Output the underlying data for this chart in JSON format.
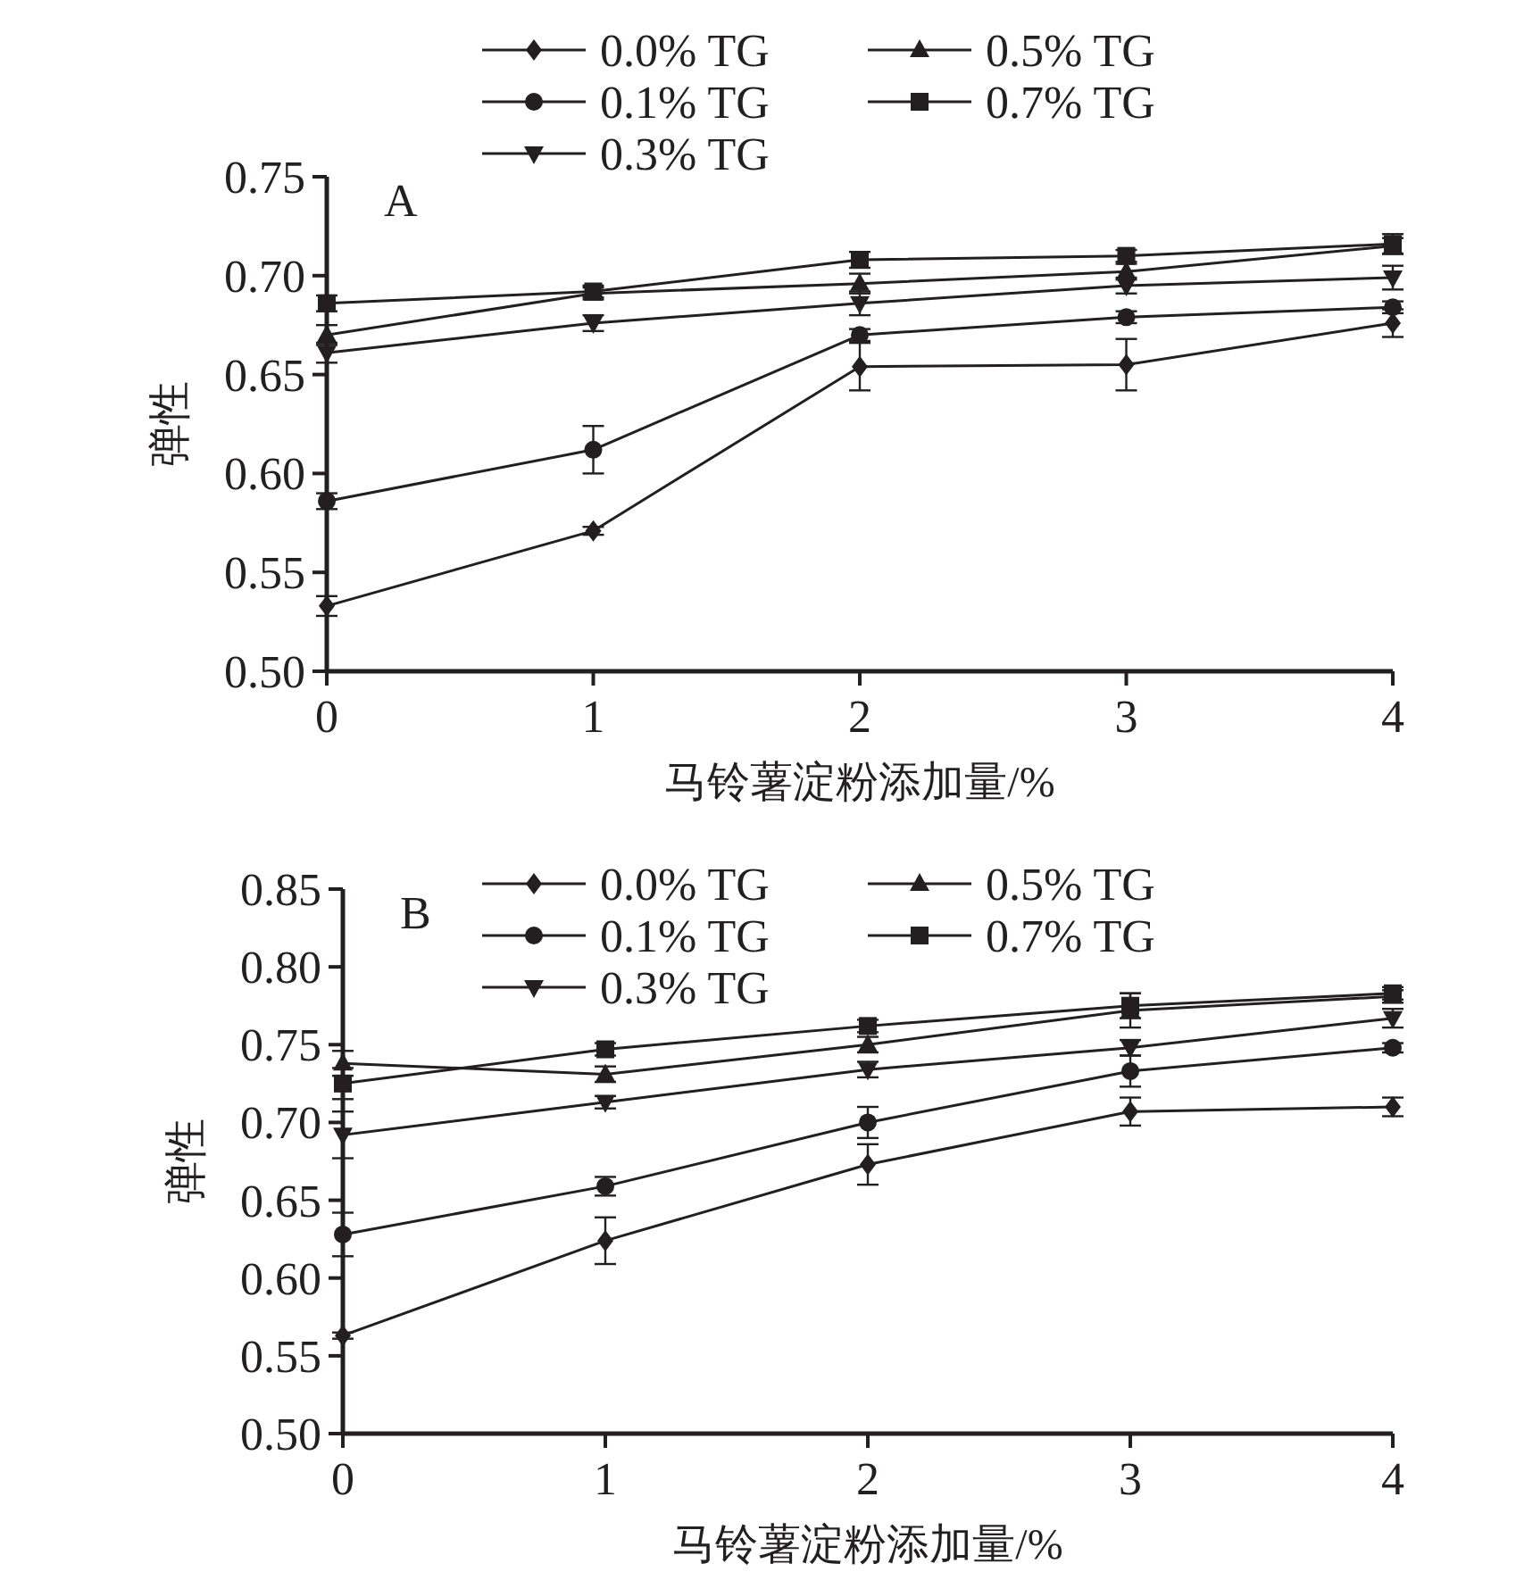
{
  "chart_data": [
    {
      "type": "line",
      "xlabel": "马铃薯淀粉添加量/%",
      "ylabel": "弹性",
      "annotations": [
        "A"
      ],
      "x": [
        0,
        1,
        2,
        3,
        4
      ],
      "xlim": [
        0,
        4
      ],
      "xticks": [
        0,
        1,
        2,
        3,
        4
      ],
      "ylim": [
        0.5,
        0.75
      ],
      "yticks": [
        {
          "value": 0.5,
          "label": "0.50"
        },
        {
          "value": 0.55,
          "label": "0.55"
        },
        {
          "value": 0.6,
          "label": "0.60"
        },
        {
          "value": 0.65,
          "label": "0.65"
        },
        {
          "value": 0.7,
          "label": "0.70"
        },
        {
          "value": 0.75,
          "label": "0.75"
        }
      ],
      "legend": "top",
      "grid": false,
      "line_style": "solid",
      "series": [
        {
          "name": "0.0% TG",
          "color": "#231f20",
          "marker": "diamond",
          "values": [
            0.533,
            0.571,
            0.654,
            0.655,
            0.676
          ],
          "errors": [
            0.005,
            0.002,
            0.012,
            0.013,
            0.007
          ]
        },
        {
          "name": "0.1% TG",
          "color": "#231f20",
          "marker": "circle",
          "values": [
            0.586,
            0.612,
            0.67,
            0.679,
            0.684
          ],
          "errors": [
            0.004,
            0.012,
            0.003,
            0.003,
            0.003
          ]
        },
        {
          "name": "0.3% TG",
          "color": "#231f20",
          "marker": "triangle-down",
          "values": [
            0.661,
            0.676,
            0.686,
            0.695,
            0.699
          ],
          "errors": [
            0.005,
            0.004,
            0.006,
            0.004,
            0.006
          ]
        },
        {
          "name": "0.5% TG",
          "color": "#231f20",
          "marker": "triangle",
          "values": [
            0.67,
            0.691,
            0.696,
            0.702,
            0.715
          ],
          "errors": [
            0.005,
            0.003,
            0.005,
            0.004,
            0.004
          ]
        },
        {
          "name": "0.7% TG",
          "color": "#231f20",
          "marker": "square",
          "values": [
            0.686,
            0.692,
            0.708,
            0.71,
            0.716
          ],
          "errors": [
            0.004,
            0.003,
            0.004,
            0.003,
            0.005
          ]
        }
      ]
    },
    {
      "type": "line",
      "xlabel": "马铃薯淀粉添加量/%",
      "ylabel": "弹性",
      "annotations": [
        "B"
      ],
      "x": [
        0,
        1,
        2,
        3,
        4
      ],
      "xlim": [
        0,
        4
      ],
      "xticks": [
        0,
        1,
        2,
        3,
        4
      ],
      "ylim": [
        0.5,
        0.85
      ],
      "yticks": [
        {
          "value": 0.5,
          "label": "0.50"
        },
        {
          "value": 0.55,
          "label": "0.55"
        },
        {
          "value": 0.6,
          "label": "0.60"
        },
        {
          "value": 0.65,
          "label": "0.65"
        },
        {
          "value": 0.7,
          "label": "0.70"
        },
        {
          "value": 0.75,
          "label": "0.75"
        },
        {
          "value": 0.8,
          "label": "0.80"
        },
        {
          "value": 0.85,
          "label": "0.85"
        }
      ],
      "legend": "top",
      "grid": false,
      "line_style": "solid",
      "series": [
        {
          "name": "0.0% TG",
          "color": "#231f20",
          "marker": "diamond",
          "values": [
            0.563,
            0.624,
            0.673,
            0.707,
            0.71
          ],
          "errors": [
            0.002,
            0.015,
            0.013,
            0.009,
            0.006
          ]
        },
        {
          "name": "0.1% TG",
          "color": "#231f20",
          "marker": "circle",
          "values": [
            0.628,
            0.659,
            0.7,
            0.733,
            0.748
          ],
          "errors": [
            0.014,
            0.006,
            0.01,
            0.01,
            0.003
          ]
        },
        {
          "name": "0.3% TG",
          "color": "#231f20",
          "marker": "triangle-down",
          "values": [
            0.692,
            0.713,
            0.734,
            0.748,
            0.767
          ],
          "errors": [
            0.015,
            0.004,
            0.005,
            0.005,
            0.006
          ]
        },
        {
          "name": "0.5% TG",
          "color": "#231f20",
          "marker": "triangle",
          "values": [
            0.738,
            0.731,
            0.75,
            0.772,
            0.781
          ],
          "errors": [
            0.008,
            0.005,
            0.005,
            0.011,
            0.004
          ]
        },
        {
          "name": "0.7% TG",
          "color": "#231f20",
          "marker": "square",
          "values": [
            0.725,
            0.747,
            0.762,
            0.775,
            0.783
          ],
          "errors": [
            0.01,
            0.004,
            0.004,
            0.008,
            0.004
          ]
        }
      ]
    }
  ]
}
